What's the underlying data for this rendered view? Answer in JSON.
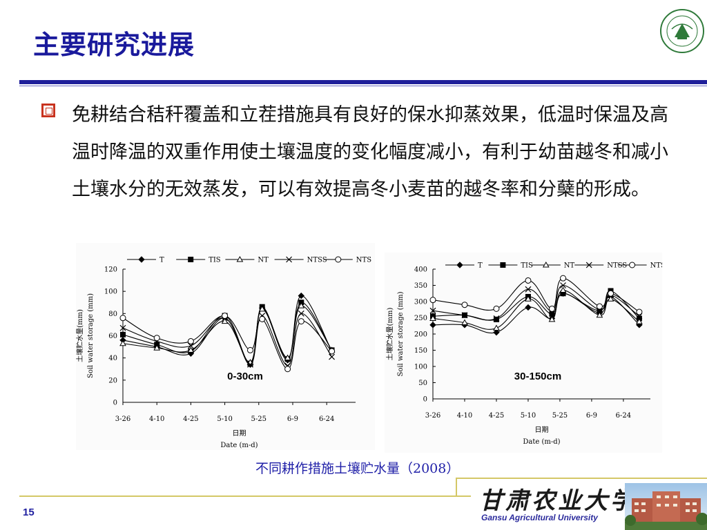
{
  "slide": {
    "title": "主要研究进展",
    "bullet_text": "免耕结合秸秆覆盖和立茬措施具有良好的保水抑蒸效果，低温时保温及高温时降温的双重作用使土壤温度的变化幅度减小，有利于幼苗越冬和减小土壤水分的无效蒸发，可以有效提高冬小麦苗的越冬率和分蘖的形成。",
    "caption": "不同耕作措施土壤贮水量（2008）",
    "page_number": "15",
    "university_name_cn": "甘肃农业大学",
    "university_name_en": "Gansu Agricultural University"
  },
  "colors": {
    "title": "#1a1a9c",
    "rule": "#1f1f9a",
    "bullet": "#c8321e",
    "caption": "#2020a8",
    "footer_line": "#d4c766"
  },
  "chart_data": [
    {
      "type": "line",
      "annotation": "0-30cm",
      "ylabel_cn": "土壤贮水量(mm)",
      "ylabel_en": "Soil water storage (mm)",
      "xlabel_cn": "日期",
      "xlabel_en": "Date (m-d)",
      "ylim": [
        0,
        120
      ],
      "yticks": [
        0,
        20,
        40,
        60,
        80,
        100,
        120
      ],
      "xlim": [
        0,
        13.7
      ],
      "xtick_positions": [
        0,
        2,
        4,
        6,
        8,
        10,
        12
      ],
      "xtick_labels": [
        "3-26",
        "4-10",
        "4-25",
        "5-10",
        "5-25",
        "6-9",
        "6-24"
      ],
      "x": [
        0,
        2,
        4,
        6,
        7.5,
        8.2,
        9.7,
        10.5,
        12.3
      ],
      "legend_position": "top",
      "series": [
        {
          "name": "T",
          "marker": "diamond",
          "values": [
            56,
            50,
            44,
            76,
            34,
            85,
            38,
            96,
            46
          ]
        },
        {
          "name": "TIS",
          "marker": "square",
          "values": [
            61,
            52,
            46,
            78,
            35,
            86,
            39,
            90,
            47
          ]
        },
        {
          "name": "NT",
          "marker": "triangle",
          "values": [
            53,
            49,
            47,
            73,
            36,
            84,
            40,
            87,
            47
          ]
        },
        {
          "name": "NTSS",
          "marker": "x",
          "values": [
            67,
            55,
            51,
            76,
            34,
            78,
            33,
            80,
            41
          ]
        },
        {
          "name": "NTS",
          "marker": "circle",
          "values": [
            76,
            58,
            55,
            78,
            47,
            75,
            30,
            73,
            46
          ]
        }
      ]
    },
    {
      "type": "line",
      "annotation": "30-150cm",
      "ylabel_cn": "土壤贮水量(mm)",
      "ylabel_en": "Soil water storage (mm)",
      "xlabel_cn": "日期",
      "xlabel_en": "Date (m-d)",
      "ylim": [
        0,
        400
      ],
      "yticks": [
        0,
        50,
        100,
        150,
        200,
        250,
        300,
        350,
        400
      ],
      "xlim": [
        0,
        13.7
      ],
      "xtick_positions": [
        0,
        2,
        4,
        6,
        8,
        10,
        12
      ],
      "xtick_labels": [
        "3-26",
        "4-10",
        "4-25",
        "5-10",
        "5-25",
        "6-9",
        "6-24"
      ],
      "x": [
        0,
        2,
        4,
        6,
        7.5,
        8.2,
        10.5,
        11.2,
        13
      ],
      "legend_position": "top",
      "series": [
        {
          "name": "T",
          "marker": "diamond",
          "values": [
            228,
            228,
            205,
            282,
            248,
            325,
            265,
            315,
            228
          ]
        },
        {
          "name": "TIS",
          "marker": "square",
          "values": [
            255,
            258,
            245,
            315,
            262,
            325,
            272,
            333,
            248
          ]
        },
        {
          "name": "NT",
          "marker": "triangle",
          "values": [
            248,
            235,
            218,
            308,
            245,
            335,
            258,
            308,
            238
          ]
        },
        {
          "name": "NTSS",
          "marker": "x",
          "values": [
            272,
            258,
            248,
            338,
            270,
            350,
            275,
            320,
            255
          ]
        },
        {
          "name": "NTS",
          "marker": "circle",
          "values": [
            305,
            290,
            278,
            365,
            278,
            372,
            285,
            325,
            268
          ]
        }
      ]
    }
  ]
}
